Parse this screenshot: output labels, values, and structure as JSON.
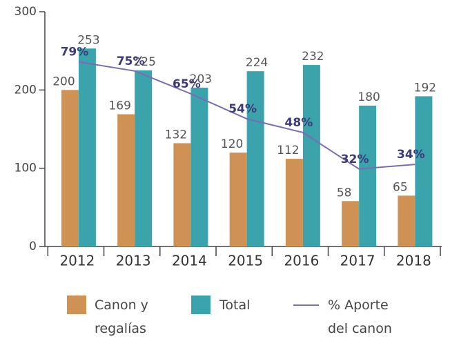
{
  "chart_data": {
    "type": "bar",
    "categories": [
      "2012",
      "2013",
      "2014",
      "2015",
      "2016",
      "2017",
      "2018"
    ],
    "series": [
      {
        "name": "Canon y regalías",
        "color": "#d09254",
        "values": [
          200,
          169,
          132,
          120,
          112,
          58,
          65
        ]
      },
      {
        "name": "Total",
        "color": "#3ba3ab",
        "values": [
          253,
          225,
          203,
          224,
          232,
          180,
          192
        ]
      },
      {
        "name": "% Aporte del canon",
        "color": "#7b6bb5",
        "type": "line",
        "axis": "y2",
        "values": [
          79,
          75,
          65,
          54,
          48,
          32,
          34
        ],
        "value_labels": [
          "79%",
          "75%",
          "65%",
          "54%",
          "48%",
          "32%",
          "34%"
        ]
      }
    ],
    "ylim": [
      0,
      300
    ],
    "yticks": [
      0,
      100,
      200,
      300
    ],
    "y2lim": [
      -2,
      101
    ]
  }
}
